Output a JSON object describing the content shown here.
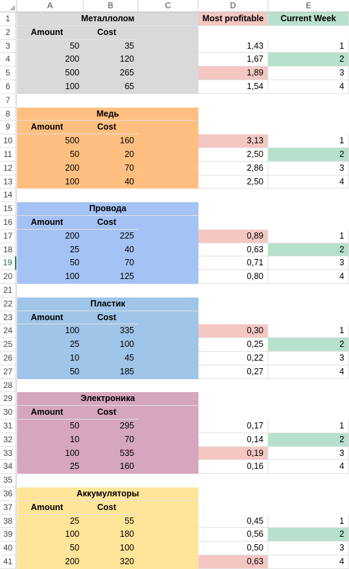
{
  "columns": [
    "A",
    "B",
    "C",
    "D",
    "E"
  ],
  "headers": {
    "most_profitable": "Most profitable",
    "current_week": "Current Week"
  },
  "colors": {
    "scrap": "#d9d9d9",
    "copper": "#ffbf80",
    "wires": "#a4c2f4",
    "plastic": "#9fc5e8",
    "electronics": "#d5a6bd",
    "batteries": "#ffe599",
    "pink": "#f4c7c3",
    "green": "#b7e1cd"
  },
  "rows": [
    "1",
    "2",
    "3",
    "4",
    "5",
    "6",
    "7",
    "8",
    "9",
    "10",
    "11",
    "12",
    "13",
    "14",
    "15",
    "16",
    "17",
    "18",
    "19",
    "20",
    "21",
    "22",
    "23",
    "24",
    "25",
    "26",
    "27",
    "28",
    "29",
    "30",
    "31",
    "32",
    "33",
    "34",
    "35",
    "36",
    "37",
    "38",
    "39",
    "40",
    "41"
  ],
  "sections": [
    {
      "title": "Металлолом",
      "amount_label": "Amount",
      "cost_label": "Cost",
      "items": [
        {
          "amount": "50",
          "cost": "35",
          "ratio": "1,43",
          "week": "1"
        },
        {
          "amount": "200",
          "cost": "120",
          "ratio": "1,67",
          "week": "2"
        },
        {
          "amount": "500",
          "cost": "265",
          "ratio": "1,89",
          "week": "3"
        },
        {
          "amount": "100",
          "cost": "65",
          "ratio": "1,54",
          "week": "4"
        }
      ]
    },
    {
      "title": "Медь",
      "amount_label": "Amount",
      "cost_label": "Cost",
      "items": [
        {
          "amount": "500",
          "cost": "160",
          "ratio": "3,13",
          "week": "1"
        },
        {
          "amount": "50",
          "cost": "20",
          "ratio": "2,50",
          "week": "2"
        },
        {
          "amount": "200",
          "cost": "70",
          "ratio": "2,86",
          "week": "3"
        },
        {
          "amount": "100",
          "cost": "40",
          "ratio": "2,50",
          "week": "4"
        }
      ]
    },
    {
      "title": "Провода",
      "amount_label": "Amount",
      "cost_label": "Cost",
      "items": [
        {
          "amount": "200",
          "cost": "225",
          "ratio": "0,89",
          "week": "1"
        },
        {
          "amount": "25",
          "cost": "40",
          "ratio": "0,63",
          "week": "2"
        },
        {
          "amount": "50",
          "cost": "70",
          "ratio": "0,71",
          "week": "3"
        },
        {
          "amount": "100",
          "cost": "125",
          "ratio": "0,80",
          "week": "4"
        }
      ]
    },
    {
      "title": "Пластик",
      "amount_label": "Amount",
      "cost_label": "Cost",
      "items": [
        {
          "amount": "100",
          "cost": "335",
          "ratio": "0,30",
          "week": "1"
        },
        {
          "amount": "25",
          "cost": "100",
          "ratio": "0,25",
          "week": "2"
        },
        {
          "amount": "10",
          "cost": "45",
          "ratio": "0,22",
          "week": "3"
        },
        {
          "amount": "50",
          "cost": "185",
          "ratio": "0,27",
          "week": "4"
        }
      ]
    },
    {
      "title": "Электроника",
      "amount_label": "Amount",
      "cost_label": "Cost",
      "items": [
        {
          "amount": "50",
          "cost": "295",
          "ratio": "0,17",
          "week": "1"
        },
        {
          "amount": "10",
          "cost": "70",
          "ratio": "0,14",
          "week": "2"
        },
        {
          "amount": "100",
          "cost": "535",
          "ratio": "0,19",
          "week": "3"
        },
        {
          "amount": "25",
          "cost": "160",
          "ratio": "0,16",
          "week": "4"
        }
      ]
    },
    {
      "title": "Аккумуляторы",
      "amount_label": "Amount",
      "cost_label": "Cost",
      "items": [
        {
          "amount": "25",
          "cost": "55",
          "ratio": "0,45",
          "week": "1"
        },
        {
          "amount": "100",
          "cost": "180",
          "ratio": "0,56",
          "week": "2"
        },
        {
          "amount": "50",
          "cost": "100",
          "ratio": "0,50",
          "week": "3"
        },
        {
          "amount": "200",
          "cost": "320",
          "ratio": "0,63",
          "week": "4"
        }
      ]
    }
  ]
}
